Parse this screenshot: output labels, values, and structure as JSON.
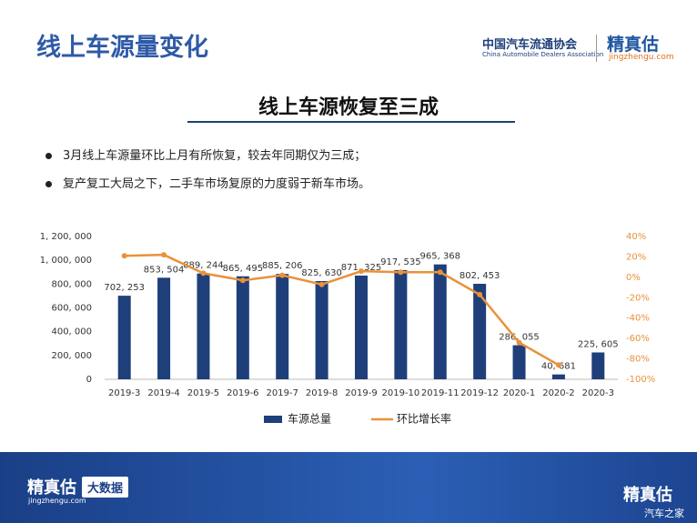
{
  "header": {
    "title": "线上车源量变化",
    "org_name": "中国汽车流通协会",
    "org_name_en": "China Automobile Dealers Association",
    "brand": "精真估",
    "brand_url": "jingzhengu.com"
  },
  "subtitle": "线上车源恢复至三成",
  "bullets": [
    "3月线上车源量环比上月有所恢复，较去年同期仅为三成；",
    "复产复工大局之下，二手车市场复原的力度弱于新车市场。"
  ],
  "chart_data": {
    "type": "bar-line",
    "categories": [
      "2019-3",
      "2019-4",
      "2019-5",
      "2019-6",
      "2019-7",
      "2019-8",
      "2019-9",
      "2019-10",
      "2019-11",
      "2019-12",
      "2020-1",
      "2020-2",
      "2020-3"
    ],
    "series": [
      {
        "name": "车源总量",
        "type": "bar",
        "color": "#1f3f7a",
        "values": [
          702253,
          853504,
          889244,
          865495,
          885206,
          825630,
          871325,
          917535,
          965368,
          802453,
          286055,
          40681,
          225605
        ],
        "value_labels": [
          "702, 253",
          "853, 504",
          "889, 244",
          "865, 495",
          "885, 206",
          "825, 630",
          "871, 325",
          "917, 535",
          "965, 368",
          "802, 453",
          "286, 055",
          "40, 681",
          "225, 605"
        ]
      },
      {
        "name": "环比增长率",
        "type": "line",
        "axis": "y2",
        "color": "#e8923a",
        "values": [
          21,
          22,
          4,
          -3,
          2,
          -7,
          6,
          5,
          5,
          -17,
          -64,
          -86,
          null
        ]
      }
    ],
    "ylim": [
      0,
      1200000
    ],
    "yticks": [
      0,
      {
        "value": 200000,
        "label": "200, 000"
      },
      {
        "value": 400000,
        "label": "400, 000"
      },
      {
        "value": 600000,
        "label": "600, 000"
      },
      {
        "value": 800000,
        "label": "800, 000"
      },
      {
        "value": 1000000,
        "label": "1, 000, 000"
      },
      {
        "value": 1200000,
        "label": "1, 200, 000"
      }
    ],
    "y2lim": [
      -100,
      40
    ],
    "y2ticks": [
      {
        "value": -100,
        "label": "-100%"
      },
      {
        "value": -80,
        "label": "-80%"
      },
      {
        "value": -60,
        "label": "-60%"
      },
      {
        "value": -40,
        "label": "-40%"
      },
      {
        "value": -20,
        "label": "-20%"
      },
      {
        "value": 0,
        "label": "0%"
      },
      {
        "value": 20,
        "label": "20%"
      },
      {
        "value": 40,
        "label": "40%"
      }
    ],
    "legend": "bottom"
  },
  "footer": {
    "brand": "精真估",
    "brand_url": "jingzhengu.com",
    "tag": "大数据",
    "wechat": "精真估",
    "source": "汽车之家"
  }
}
